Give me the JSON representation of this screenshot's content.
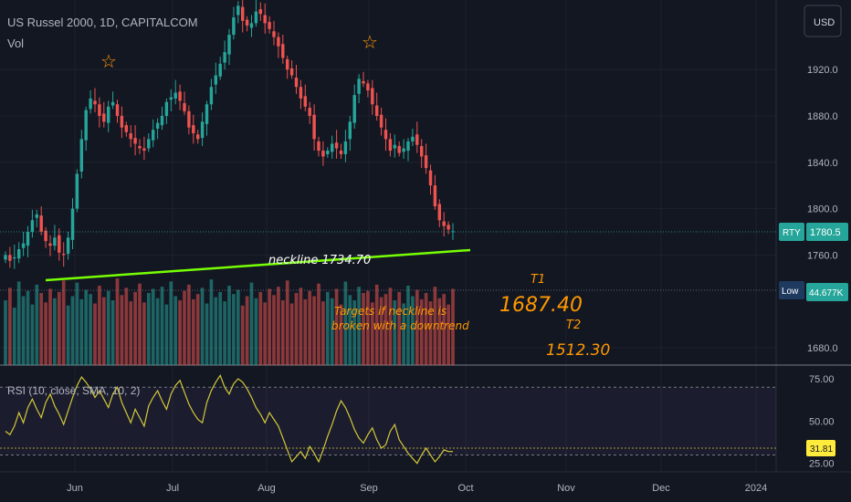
{
  "header": {
    "symbol_line": "US Russel 2000, 1D, CAPITALCOM",
    "volume_label": "Vol"
  },
  "currency_button": "USD",
  "badges": {
    "symbol": "RTY",
    "price": "1780.5",
    "vol_tag": "Low",
    "vol_value": "44.677K",
    "rsi_value": "31.81"
  },
  "annotations": {
    "neckline": "neckline  1734.70",
    "targets_line1": "Targets if neckline is",
    "targets_line2": "broken with a downtrend",
    "t1_label": "T1",
    "t1_value": "1687.40",
    "t2_label": "T2",
    "t2_value": "1512.30",
    "star": "☆"
  },
  "colors": {
    "background": "#131722",
    "up": "#26a69a",
    "down": "#ef5350",
    "neckline": "#76ff03",
    "rsi_line": "#d4c93a",
    "annotation": "#ff9800",
    "symbol_badge": "#26a69a",
    "vol_badge": "#1e3a5f"
  },
  "chart_data": [
    {
      "type": "candlestick",
      "title": "US Russel 2000, 1D, CAPITALCOM",
      "ylim": [
        1665,
        1980
      ],
      "y_ticks": [
        "1920.0",
        "1880.0",
        "1840.0",
        "1800.0",
        "1760.0",
        "1680.0"
      ],
      "y_tick_values": [
        1920,
        1880,
        1840,
        1800,
        1760,
        1680
      ],
      "x_ticks": [
        "Jun",
        "Jul",
        "Aug",
        "Sep",
        "Oct",
        "Nov",
        "Dec",
        "2024"
      ],
      "last_price": 1780.5,
      "neckline": {
        "start": [
          "May 26",
          1735
        ],
        "end": [
          "Sep 29",
          1760
        ],
        "label_value": 1734.7
      },
      "close_series": [
        1760,
        1755,
        1758,
        1765,
        1770,
        1780,
        1790,
        1795,
        1780,
        1772,
        1768,
        1775,
        1762,
        1760,
        1775,
        1800,
        1830,
        1860,
        1885,
        1895,
        1890,
        1880,
        1875,
        1888,
        1892,
        1880,
        1870,
        1866,
        1860,
        1856,
        1852,
        1850,
        1860,
        1868,
        1874,
        1880,
        1892,
        1896,
        1900,
        1893,
        1884,
        1870,
        1865,
        1860,
        1875,
        1890,
        1905,
        1915,
        1925,
        1935,
        1950,
        1965,
        1975,
        1962,
        1958,
        1960,
        1970,
        1968,
        1960,
        1955,
        1948,
        1940,
        1930,
        1920,
        1915,
        1905,
        1895,
        1888,
        1880,
        1860,
        1850,
        1845,
        1850,
        1856,
        1852,
        1847,
        1858,
        1875,
        1898,
        1912,
        1908,
        1902,
        1890,
        1880,
        1870,
        1860,
        1850,
        1855,
        1848,
        1852,
        1858,
        1862,
        1855,
        1845,
        1835,
        1820,
        1802,
        1790,
        1785,
        1782,
        1780.5
      ],
      "volume": {
        "last_value": "44.677K",
        "bars": [
          62,
          74,
          55,
          80,
          66,
          71,
          58,
          77,
          69,
          60,
          73,
          64,
          70,
          81,
          57,
          66,
          79,
          63,
          72,
          68,
          59,
          76,
          65,
          71,
          62,
          83,
          67,
          74,
          61,
          70,
          78,
          60,
          69,
          73,
          64,
          75,
          58,
          80,
          66,
          62,
          71,
          77,
          63,
          68,
          74,
          59,
          82,
          65,
          70,
          61,
          76,
          68,
          72,
          57,
          66,
          79,
          64,
          70,
          60,
          73,
          67,
          75,
          62,
          81,
          59,
          69,
          74,
          63,
          71,
          66,
          78,
          61,
          70,
          64,
          73,
          58,
          80,
          67,
          62,
          75,
          69,
          71,
          60,
          77,
          65,
          68,
          74,
          62,
          70,
          59,
          76,
          66,
          72,
          63,
          69,
          61,
          75,
          64,
          68,
          58,
          73
        ]
      }
    },
    {
      "type": "line",
      "title": "RSI (10, close, SMA, 10, 2)",
      "ylim": [
        20,
        82
      ],
      "y_ticks": [
        "75.00",
        "50.00",
        "25.00"
      ],
      "y_tick_values": [
        75,
        50,
        25
      ],
      "bands": [
        70,
        30
      ],
      "last_value": 31.81,
      "values": [
        44,
        42,
        47,
        55,
        49,
        58,
        63,
        57,
        52,
        61,
        66,
        59,
        54,
        48,
        56,
        64,
        71,
        76,
        73,
        69,
        64,
        68,
        63,
        58,
        66,
        70,
        61,
        55,
        49,
        57,
        52,
        47,
        59,
        64,
        68,
        62,
        57,
        66,
        71,
        74,
        67,
        60,
        55,
        51,
        49,
        61,
        68,
        73,
        77,
        70,
        66,
        72,
        75,
        73,
        69,
        64,
        58,
        54,
        49,
        55,
        51,
        47,
        40,
        33,
        26,
        29,
        32,
        28,
        35,
        31,
        26,
        33,
        41,
        48,
        56,
        62,
        58,
        52,
        45,
        40,
        37,
        42,
        46,
        39,
        34,
        36,
        44,
        48,
        39,
        35,
        31,
        28,
        25,
        30,
        34,
        30,
        26,
        29,
        33,
        32,
        32
      ]
    }
  ]
}
